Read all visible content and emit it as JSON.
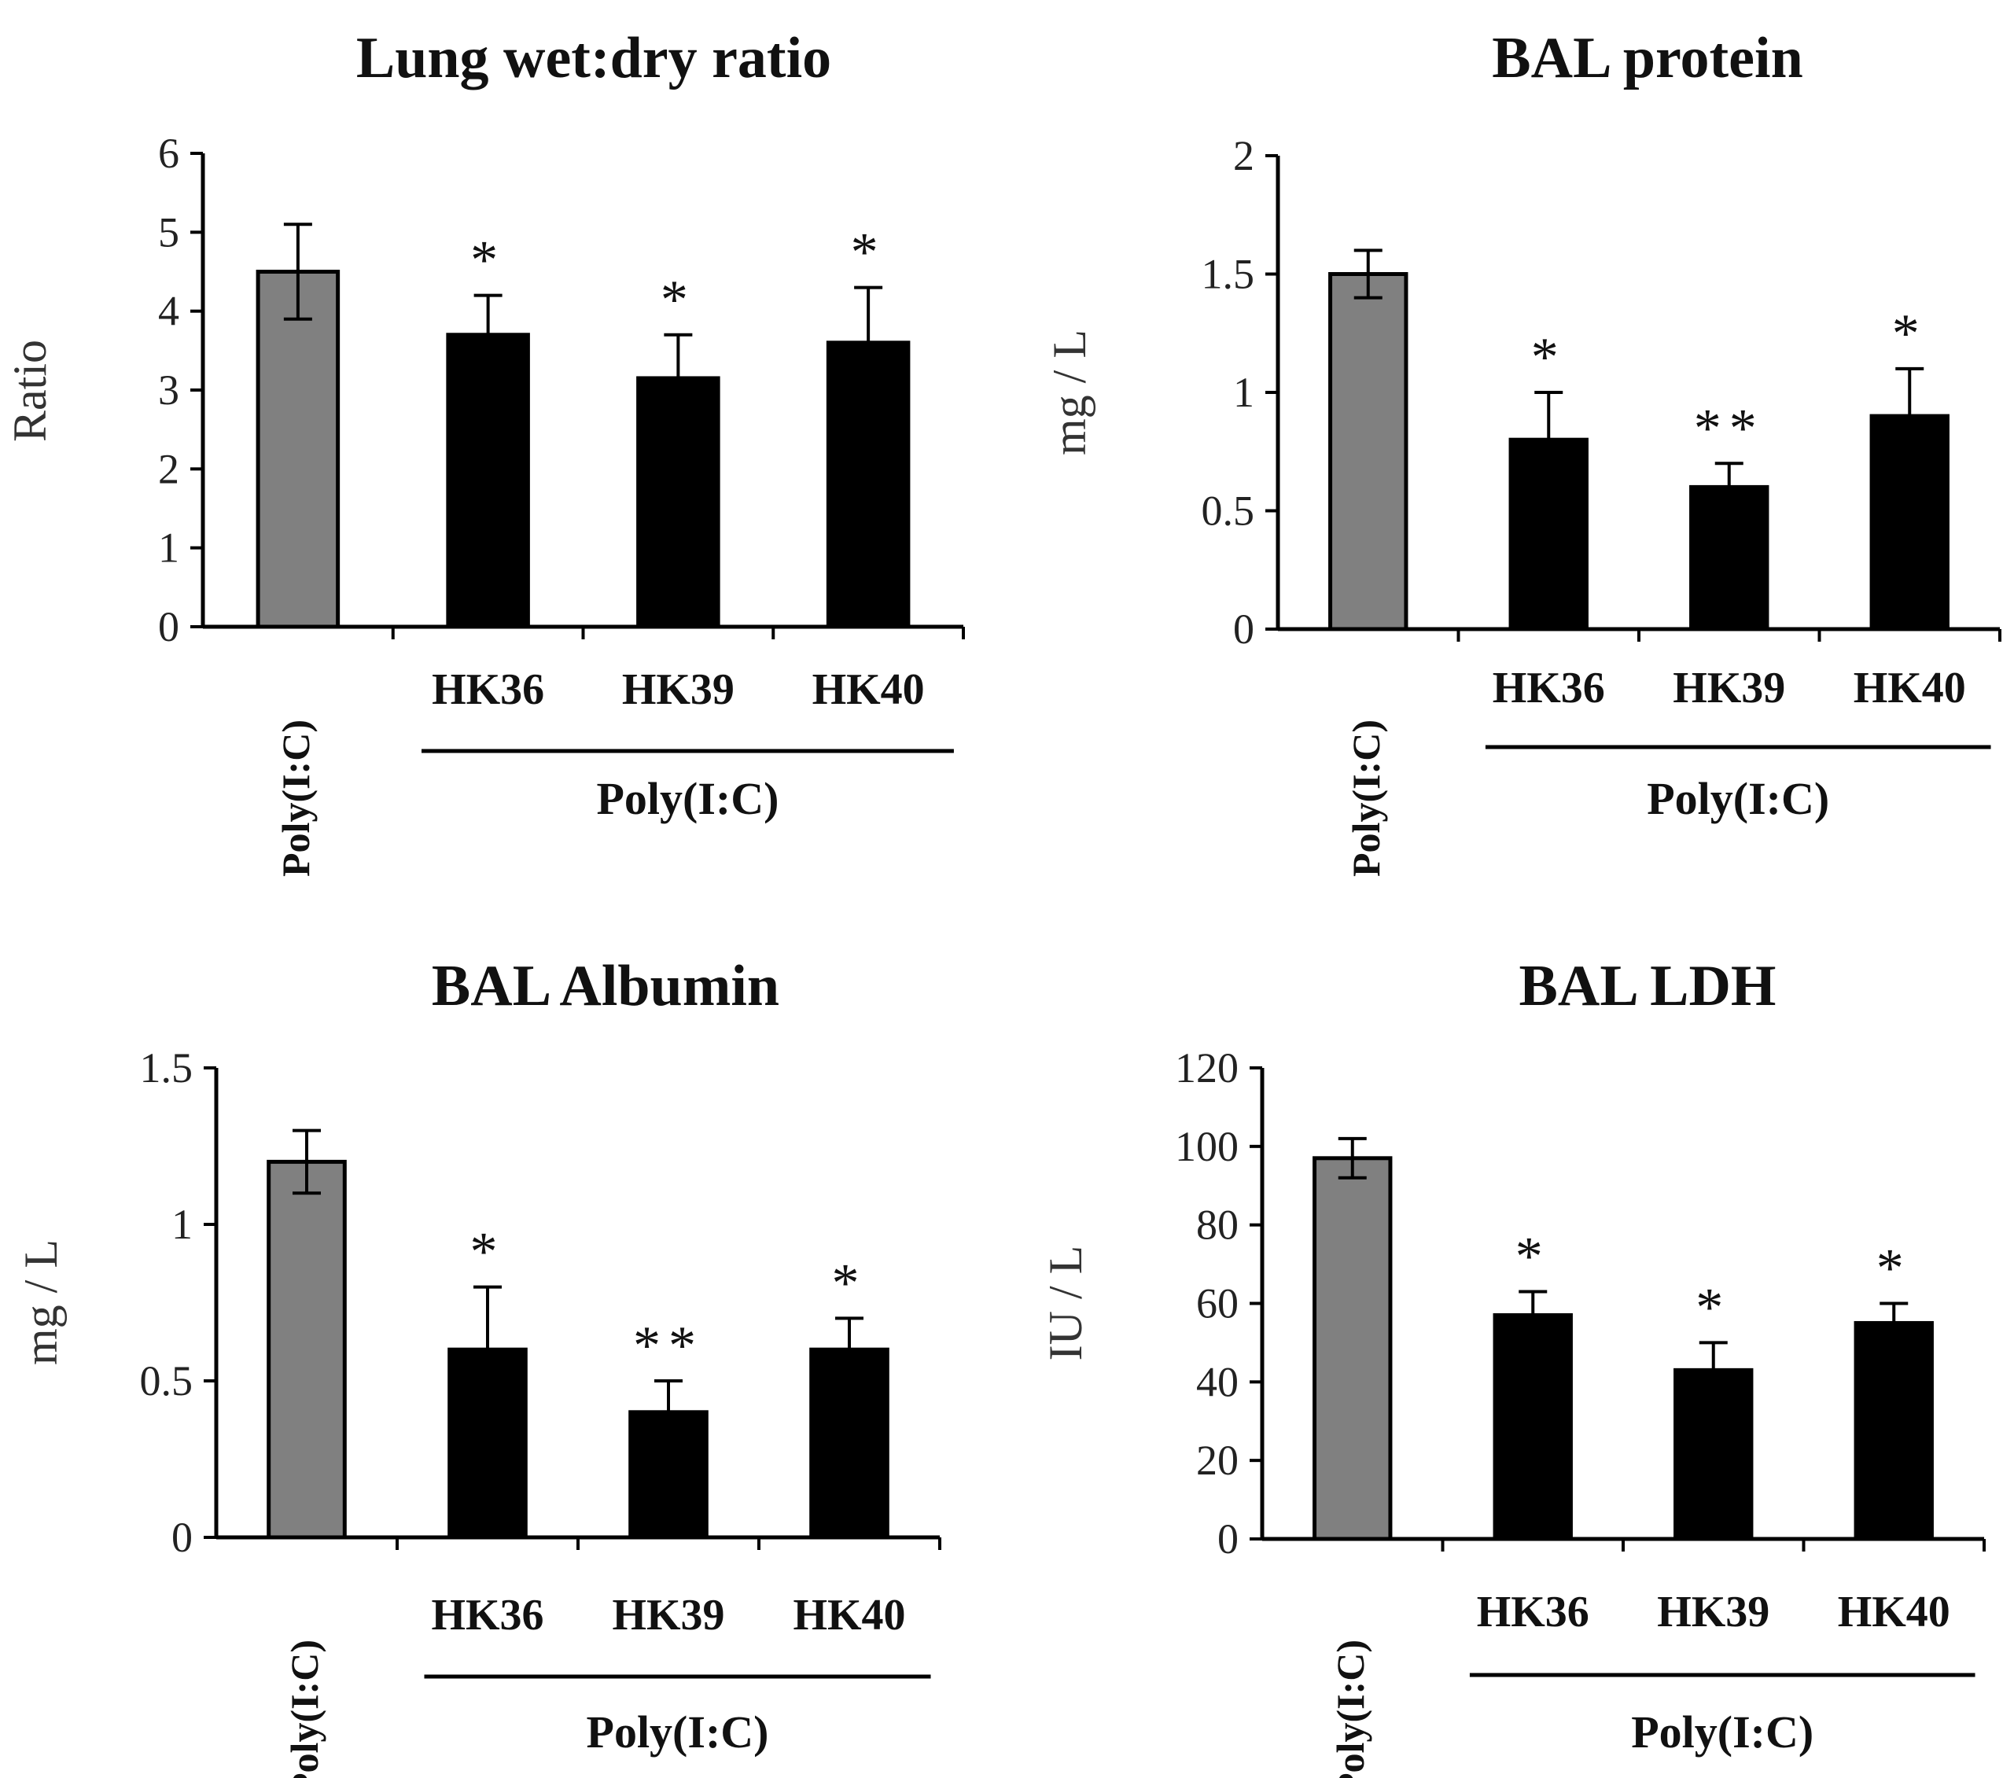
{
  "chart_data": [
    {
      "type": "bar",
      "title": "Lung wet:dry ratio",
      "ylabel": "Ratio",
      "xlabel": "",
      "ylim": [
        0,
        6
      ],
      "yticks": [
        "0",
        "1",
        "2",
        "3",
        "4",
        "5",
        "6"
      ],
      "yticks_values": [
        0,
        1,
        2,
        3,
        4,
        5,
        6
      ],
      "control_label": "Poly(I:C)",
      "group_label": "Poly(I:C)",
      "categories": [
        "Poly(I:C)",
        "HK36",
        "HK39",
        "HK40"
      ],
      "values": [
        4.5,
        3.7,
        3.15,
        3.6
      ],
      "errors": [
        0.6,
        0.5,
        0.55,
        0.7
      ],
      "significance": [
        "",
        "*",
        "*",
        "*"
      ],
      "colors": [
        "#808080",
        "#000000",
        "#000000",
        "#000000"
      ]
    },
    {
      "type": "bar",
      "title": "BAL protein",
      "ylabel": "mg / L",
      "xlabel": "",
      "ylim": [
        0,
        2
      ],
      "yticks": [
        "0",
        "0.5",
        "1",
        "1.5",
        "2"
      ],
      "yticks_values": [
        0,
        0.5,
        1,
        1.5,
        2
      ],
      "control_label": "Poly(I:C)",
      "group_label": "Poly(I:C)",
      "categories": [
        "Poly(I:C)",
        "HK36",
        "HK39",
        "HK40"
      ],
      "values": [
        1.5,
        0.8,
        0.6,
        0.9
      ],
      "errors": [
        0.1,
        0.2,
        0.1,
        0.2
      ],
      "significance": [
        "",
        "*",
        "**",
        "*"
      ],
      "colors": [
        "#808080",
        "#000000",
        "#000000",
        "#000000"
      ]
    },
    {
      "type": "bar",
      "title": "BAL Albumin",
      "ylabel": "mg / L",
      "xlabel": "",
      "ylim": [
        0,
        1.5
      ],
      "yticks": [
        "0",
        "0.5",
        "1",
        "1.5"
      ],
      "yticks_values": [
        0,
        0.5,
        1,
        1.5
      ],
      "control_label": "Poly(I:C)",
      "group_label": "Poly(I:C)",
      "categories": [
        "Poly(I:C)",
        "HK36",
        "HK39",
        "HK40"
      ],
      "values": [
        1.2,
        0.6,
        0.4,
        0.6
      ],
      "errors": [
        0.1,
        0.2,
        0.1,
        0.1
      ],
      "significance": [
        "",
        "*",
        "**",
        "*"
      ],
      "colors": [
        "#808080",
        "#000000",
        "#000000",
        "#000000"
      ]
    },
    {
      "type": "bar",
      "title": "BAL LDH",
      "ylabel": "IU / L",
      "xlabel": "",
      "ylim": [
        0,
        120
      ],
      "yticks": [
        "0",
        "20",
        "40",
        "60",
        "80",
        "100",
        "120"
      ],
      "yticks_values": [
        0,
        20,
        40,
        60,
        80,
        100,
        120
      ],
      "control_label": "Poly(I:C)",
      "group_label": "Poly(I:C)",
      "categories": [
        "Poly(I:C)",
        "HK36",
        "HK39",
        "HK40"
      ],
      "values": [
        97,
        57,
        43,
        55
      ],
      "errors": [
        5,
        6,
        7,
        5
      ],
      "significance": [
        "",
        "*",
        "*",
        "*"
      ],
      "colors": [
        "#808080",
        "#000000",
        "#000000",
        "#000000"
      ]
    }
  ]
}
